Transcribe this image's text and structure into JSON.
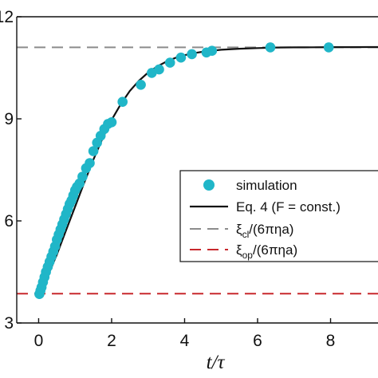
{
  "chart_data": {
    "type": "scatter",
    "xlabel": "t/τ",
    "ylabel": "",
    "xlim": [
      -0.6,
      9.3
    ],
    "ylim": [
      3,
      12
    ],
    "x_ticks": [
      0,
      2,
      4,
      6,
      8
    ],
    "y_ticks": [
      3,
      6,
      9,
      12
    ],
    "grid": false,
    "legend_position": "center-right",
    "series": [
      {
        "name": "simulation",
        "kind": "points",
        "color": "#20b6c8",
        "x": [
          0.02,
          0.05,
          0.08,
          0.12,
          0.16,
          0.2,
          0.25,
          0.3,
          0.35,
          0.4,
          0.45,
          0.5,
          0.55,
          0.6,
          0.65,
          0.7,
          0.75,
          0.8,
          0.85,
          0.9,
          0.95,
          1.0,
          1.05,
          1.12,
          1.2,
          1.3,
          1.4,
          1.5,
          1.6,
          1.7,
          1.8,
          1.9,
          2.0,
          2.3,
          2.8,
          3.1,
          3.3,
          3.6,
          3.9,
          4.2,
          4.6,
          4.75,
          6.35,
          7.95
        ],
        "y": [
          3.85,
          3.95,
          4.05,
          4.2,
          4.35,
          4.5,
          4.65,
          4.8,
          4.95,
          5.1,
          5.25,
          5.45,
          5.6,
          5.75,
          5.9,
          6.05,
          6.2,
          6.35,
          6.5,
          6.6,
          6.75,
          6.9,
          7.0,
          7.1,
          7.3,
          7.55,
          7.7,
          8.05,
          8.3,
          8.5,
          8.7,
          8.85,
          8.9,
          9.5,
          10.0,
          10.35,
          10.45,
          10.65,
          10.8,
          10.9,
          10.95,
          11.0,
          11.1,
          11.1
        ]
      },
      {
        "name": "Eq. 4 (F = const.)",
        "kind": "line",
        "color": "#111111",
        "x": [
          0,
          0.25,
          0.5,
          0.75,
          1.0,
          1.25,
          1.5,
          1.75,
          2.0,
          2.25,
          2.5,
          2.75,
          3.0,
          3.25,
          3.5,
          3.75,
          4.0,
          4.25,
          4.5,
          4.75,
          5.0,
          5.5,
          6.0,
          6.5,
          7.0,
          7.5,
          8.0,
          8.5,
          9.0,
          9.3
        ],
        "y": [
          3.85,
          4.38,
          5.01,
          5.72,
          6.42,
          7.13,
          7.8,
          8.42,
          8.97,
          9.43,
          9.82,
          10.12,
          10.36,
          10.54,
          10.68,
          10.79,
          10.87,
          10.93,
          10.97,
          11.0,
          11.03,
          11.06,
          11.08,
          11.095,
          11.1,
          11.103,
          11.106,
          11.108,
          11.11,
          11.11
        ]
      },
      {
        "name": "ξcl/(6πηa)",
        "kind": "hline",
        "color": "#8c8c8c",
        "value": 11.1
      },
      {
        "name": "ξop/(6πηa)",
        "kind": "hline",
        "color": "#c8282d",
        "value": 3.86
      }
    ]
  }
}
